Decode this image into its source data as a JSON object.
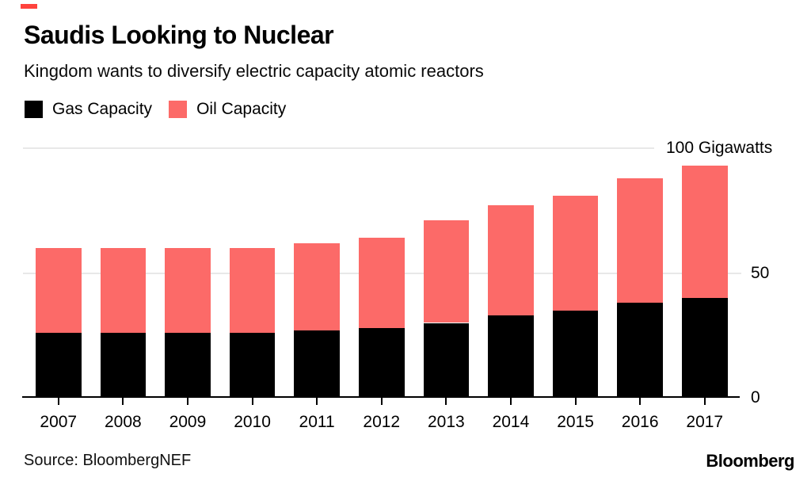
{
  "header": {
    "title": "Saudis Looking to Nuclear",
    "subtitle": "Kingdom wants to diversify electric capacity atomic reactors"
  },
  "legend": {
    "items": [
      {
        "label": "Gas Capacity",
        "color": "#000000"
      },
      {
        "label": "Oil Capacity",
        "color": "#fc6a68"
      }
    ]
  },
  "chart_data": {
    "type": "bar",
    "stacked": true,
    "title": "Saudis Looking to Nuclear",
    "subtitle": "Kingdom wants to diversify electric capacity atomic reactors",
    "categories": [
      "2007",
      "2008",
      "2009",
      "2010",
      "2011",
      "2012",
      "2013",
      "2014",
      "2015",
      "2016",
      "2017"
    ],
    "series": [
      {
        "name": "Gas Capacity",
        "color": "#000000",
        "values": [
          26,
          26,
          26,
          26,
          27,
          28,
          30,
          33,
          35,
          38,
          40
        ]
      },
      {
        "name": "Oil Capacity",
        "color": "#fc6a68",
        "values": [
          34,
          34,
          34,
          34,
          35,
          36,
          41,
          44,
          46,
          50,
          53
        ]
      }
    ],
    "unit": "Gigawatts",
    "xlabel": "",
    "ylabel": "Gigawatts",
    "y_axis": {
      "min": 0,
      "max": 100,
      "ticks": [
        {
          "value": 100,
          "label": "100 Gigawatts"
        },
        {
          "value": 50,
          "label": "50"
        },
        {
          "value": 0,
          "label": "0"
        }
      ]
    },
    "grid": "horizontal",
    "gridline_color": "#e8e8e8",
    "legend_position": "top-left",
    "accent_mark_color": "#ff433d"
  },
  "footer": {
    "source": "Source: BloombergNEF",
    "brand": "Bloomberg"
  }
}
